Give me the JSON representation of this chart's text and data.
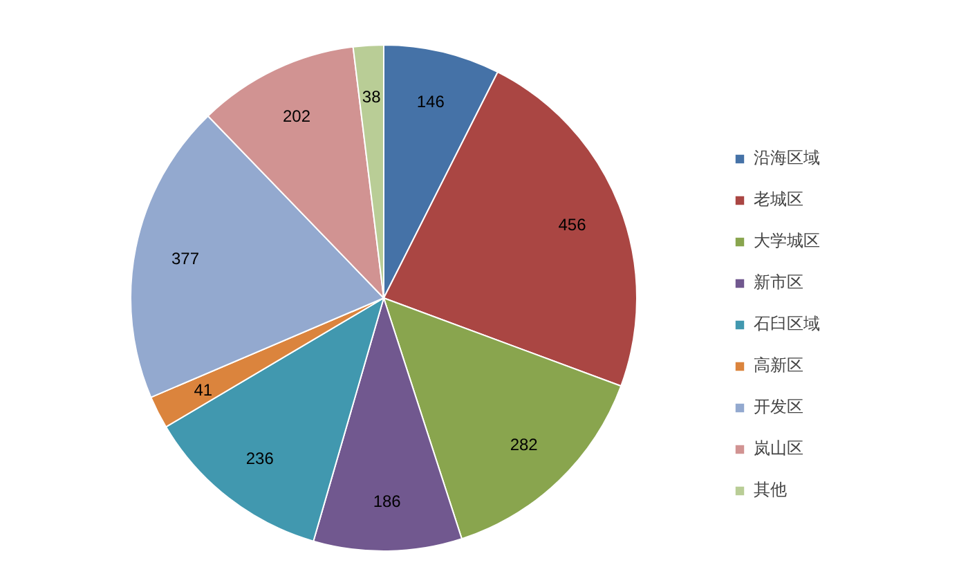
{
  "chart_data": {
    "type": "pie",
    "categories": [
      "沿海区域",
      "老城区",
      "大学城区",
      "新市区",
      "石臼区域",
      "高新区",
      "开发区",
      "岚山区",
      "其他"
    ],
    "values": [
      146,
      456,
      282,
      186,
      236,
      41,
      377,
      202,
      38
    ],
    "colors": [
      "#4572a7",
      "#aa4643",
      "#89a54e",
      "#71588f",
      "#4198af",
      "#db843d",
      "#93a9cf",
      "#d19392",
      "#b9cd96"
    ],
    "data_labels": true,
    "legend": "right"
  }
}
